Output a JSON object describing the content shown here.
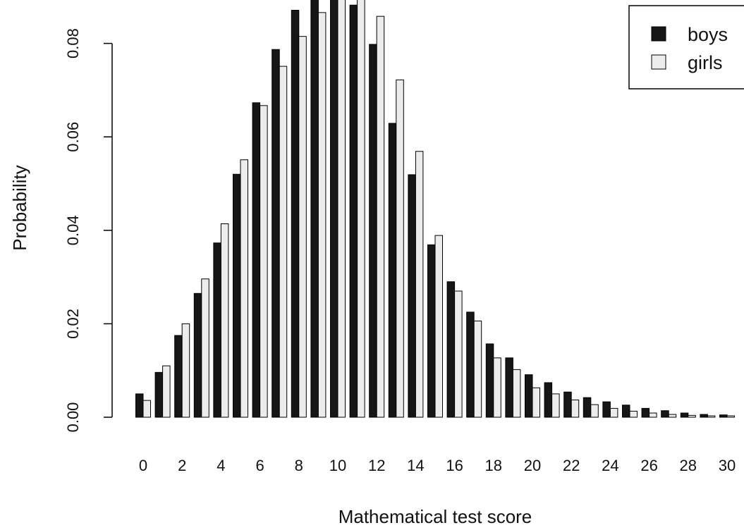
{
  "chart_data": {
    "type": "bar",
    "xlabel": "Mathematical test score",
    "ylabel": "Probability",
    "ylim": [
      0,
      0.09
    ],
    "y_ticks": [
      "0.00",
      "0.02",
      "0.04",
      "0.06",
      "0.08"
    ],
    "y_tick_values": [
      0,
      0.02,
      0.04,
      0.06,
      0.08
    ],
    "x_ticks": [
      "0",
      "2",
      "4",
      "6",
      "8",
      "10",
      "12",
      "14",
      "16",
      "18",
      "20",
      "22",
      "24",
      "26",
      "28",
      "30"
    ],
    "categories": [
      0,
      1,
      2,
      3,
      4,
      5,
      6,
      7,
      8,
      9,
      10,
      11,
      12,
      13,
      14,
      15,
      16,
      17,
      18,
      19,
      20,
      21,
      22,
      23,
      24,
      25,
      26,
      27,
      28,
      29,
      30
    ],
    "legend_position": "top-right",
    "series": [
      {
        "name": "boys",
        "color": "#161616",
        "values": [
          0.005,
          0.0096,
          0.0175,
          0.0265,
          0.0373,
          0.052,
          0.0673,
          0.0787,
          0.0871,
          0.0896,
          0.0905,
          0.0882,
          0.0798,
          0.0629,
          0.0519,
          0.0369,
          0.029,
          0.0225,
          0.0157,
          0.0127,
          0.0091,
          0.0074,
          0.0054,
          0.0042,
          0.0033,
          0.0026,
          0.0019,
          0.0014,
          0.0009,
          0.0006,
          0.0005
        ]
      },
      {
        "name": "girls",
        "color": "#ececec",
        "values": [
          0.0036,
          0.011,
          0.02,
          0.0296,
          0.0414,
          0.0551,
          0.0667,
          0.0751,
          0.0815,
          0.0866,
          0.0903,
          0.0895,
          0.0858,
          0.0722,
          0.0569,
          0.0389,
          0.027,
          0.0206,
          0.0127,
          0.0102,
          0.0063,
          0.005,
          0.0037,
          0.0027,
          0.0019,
          0.0013,
          0.0009,
          0.0006,
          0.0004,
          0.0003,
          0.0003
        ]
      }
    ]
  }
}
